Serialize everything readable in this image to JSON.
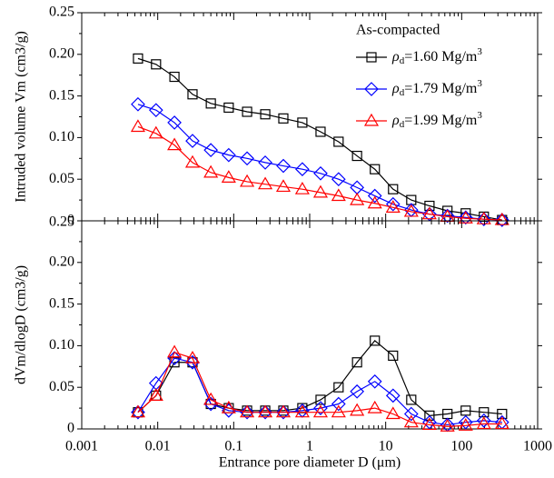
{
  "chart_data": [
    {
      "type": "line",
      "ylabel": "Intruded volume Vm (cm3/g)",
      "legend_title": "As-compacted",
      "legend": "upper-right",
      "xlim": [
        0.001,
        1000
      ],
      "log_x": true,
      "ylim": [
        0,
        0.25
      ],
      "yticks": [
        0,
        0.05,
        {
          "value": 0.1,
          "label": "0.10"
        },
        0.15,
        {
          "value": 0.2,
          "label": "0.20"
        },
        0.25
      ],
      "x": [
        0.0055,
        0.0095,
        0.0166,
        0.0287,
        0.05,
        0.086,
        0.15,
        0.26,
        0.45,
        0.8,
        1.39,
        2.4,
        4.2,
        7.2,
        12.5,
        21.7,
        37.7,
        65,
        113,
        196,
        340
      ],
      "series": [
        {
          "name": "ρd=1.60 Mg/m3",
          "color": "#000000",
          "marker": "square",
          "values": [
            0.195,
            0.188,
            0.173,
            0.152,
            0.141,
            0.136,
            0.131,
            0.128,
            0.123,
            0.118,
            0.107,
            0.095,
            0.078,
            0.062,
            0.038,
            0.025,
            0.018,
            0.012,
            0.009,
            0.005,
            0.001
          ]
        },
        {
          "name": "ρd=1.79 Mg/m3",
          "color": "#0000ff",
          "marker": "diamond",
          "values": [
            0.14,
            0.133,
            0.118,
            0.096,
            0.085,
            0.079,
            0.075,
            0.07,
            0.066,
            0.062,
            0.057,
            0.05,
            0.04,
            0.03,
            0.02,
            0.013,
            0.008,
            0.006,
            0.004,
            0.002,
            0.001
          ]
        },
        {
          "name": "ρd=1.99 Mg/m3",
          "color": "#ff0000",
          "marker": "triangle",
          "values": [
            0.113,
            0.105,
            0.091,
            0.07,
            0.058,
            0.052,
            0.047,
            0.044,
            0.041,
            0.038,
            0.034,
            0.03,
            0.025,
            0.021,
            0.016,
            0.011,
            0.008,
            0.005,
            0.003,
            0.002,
            0.001
          ]
        }
      ]
    },
    {
      "type": "line",
      "ylabel": "dVm/dlogD (cm3/g)",
      "xlabel": "Entrance pore diameter D (μm)",
      "xlim": [
        0.001,
        1000
      ],
      "log_x": true,
      "xticks": [
        0.001,
        0.01,
        0.1,
        1,
        10,
        100,
        1000
      ],
      "ylim": [
        0,
        0.25
      ],
      "yticks": [
        0,
        0.05,
        {
          "value": 0.1,
          "label": "0.10"
        },
        0.15,
        {
          "value": 0.2,
          "label": "0.20"
        },
        0.25
      ],
      "x": [
        0.0055,
        0.0095,
        0.0166,
        0.0287,
        0.05,
        0.086,
        0.15,
        0.26,
        0.45,
        0.8,
        1.39,
        2.4,
        4.2,
        7.2,
        12.5,
        21.7,
        37.7,
        65,
        113,
        196,
        340
      ],
      "series": [
        {
          "name": "ρd=1.60 Mg/m3",
          "color": "#000000",
          "marker": "square",
          "values": [
            0.02,
            0.04,
            0.08,
            0.08,
            0.03,
            0.025,
            0.022,
            0.022,
            0.022,
            0.025,
            0.035,
            0.05,
            0.08,
            0.106,
            0.088,
            0.035,
            0.016,
            0.018,
            0.022,
            0.02,
            0.018
          ]
        },
        {
          "name": "ρd=1.79 Mg/m3",
          "color": "#0000ff",
          "marker": "diamond",
          "values": [
            0.02,
            0.055,
            0.085,
            0.08,
            0.03,
            0.022,
            0.02,
            0.02,
            0.02,
            0.022,
            0.025,
            0.03,
            0.045,
            0.057,
            0.04,
            0.018,
            0.008,
            0.005,
            0.008,
            0.01,
            0.008
          ]
        },
        {
          "name": "ρd=1.99 Mg/m3",
          "color": "#ff0000",
          "marker": "triangle",
          "values": [
            0.02,
            0.04,
            0.092,
            0.085,
            0.035,
            0.025,
            0.02,
            0.02,
            0.02,
            0.02,
            0.02,
            0.02,
            0.022,
            0.025,
            0.018,
            0.008,
            0.005,
            0.003,
            0.004,
            0.006,
            0.006
          ]
        }
      ]
    }
  ]
}
